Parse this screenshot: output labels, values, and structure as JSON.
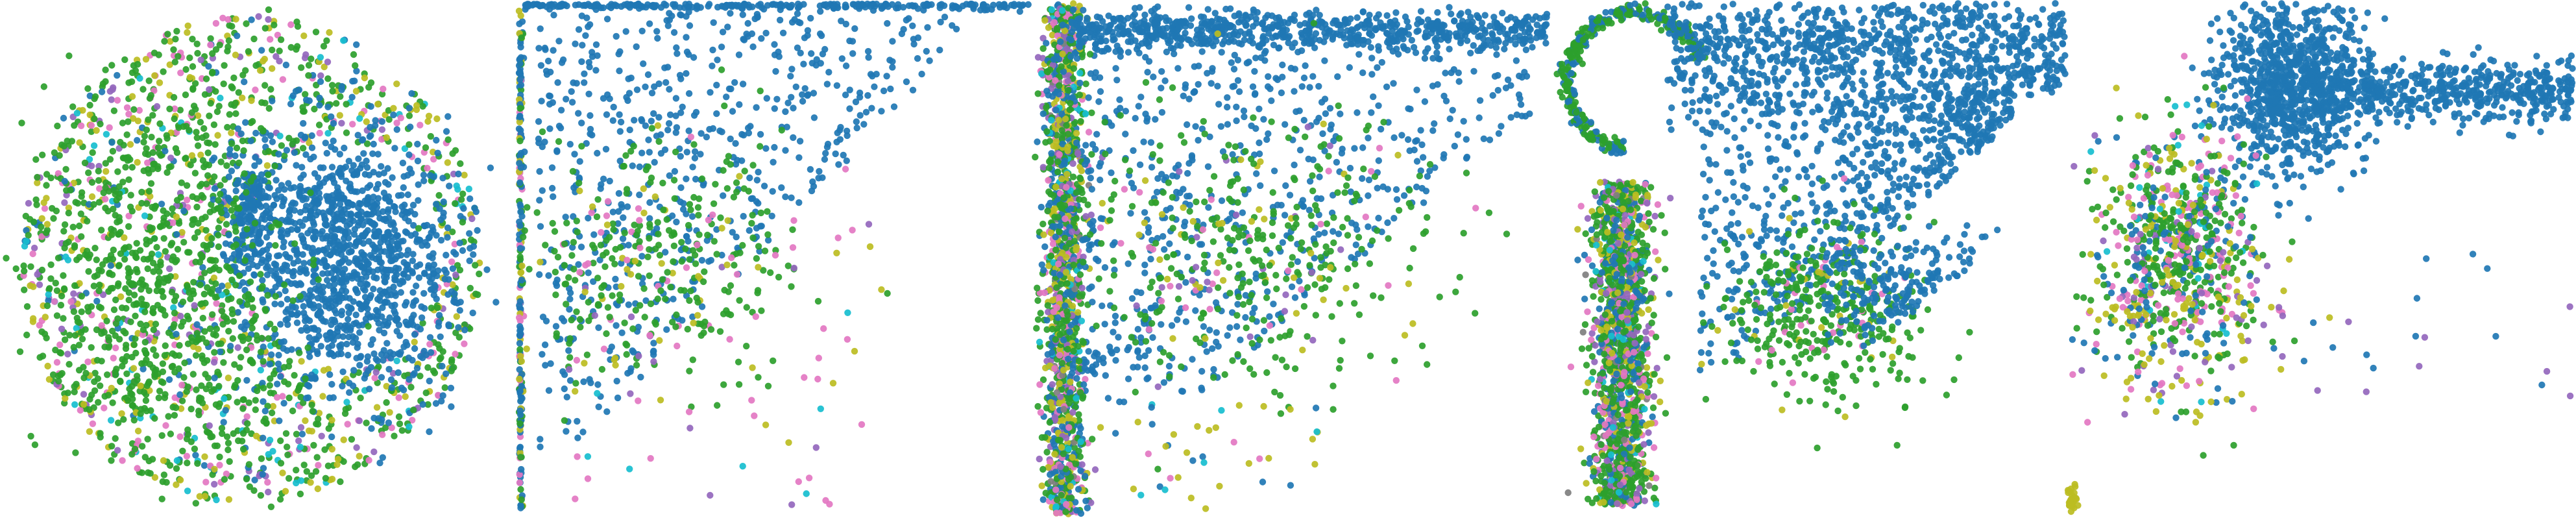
{
  "figure": {
    "background": "#ffffff",
    "panel_count": 5
  },
  "palette": {
    "blue": "#1f77b4",
    "green": "#2ca02c",
    "olive": "#bcbd22",
    "pink": "#e377c2",
    "purple": "#9467bd",
    "cyan": "#17becf",
    "grey": "#7f7f7f"
  },
  "chart_data": [
    {
      "type": "scatter",
      "title": "",
      "xlabel": "",
      "ylabel": "",
      "grid": false,
      "axes_visible": false,
      "shape": "disk with blue cluster on right half, mixed colors on outer ring and left half",
      "series": [
        {
          "color": "blue",
          "points_approx": 2200
        },
        {
          "color": "green",
          "points_approx": 1400
        },
        {
          "color": "olive",
          "points_approx": 250
        },
        {
          "color": "pink",
          "points_approx": 200
        },
        {
          "color": "purple",
          "points_approx": 120
        },
        {
          "color": "cyan",
          "points_approx": 80
        }
      ]
    },
    {
      "type": "scatter",
      "title": "",
      "xlabel": "",
      "ylabel": "",
      "grid": false,
      "axes_visible": false,
      "shape": "points concentrated along left edge and top edge, sparse wedge below",
      "series": [
        {
          "color": "blue",
          "points_approx": 900
        },
        {
          "color": "green",
          "points_approx": 320
        },
        {
          "color": "olive",
          "points_approx": 40
        },
        {
          "color": "pink",
          "points_approx": 30
        },
        {
          "color": "purple",
          "points_approx": 20
        },
        {
          "color": "cyan",
          "points_approx": 15
        }
      ]
    },
    {
      "type": "scatter",
      "title": "",
      "xlabel": "",
      "ylabel": "",
      "grid": false,
      "axes_visible": false,
      "shape": "dense vertical mixed-color band on left, blue horizontal band along top",
      "series": [
        {
          "color": "blue",
          "points_approx": 1800
        },
        {
          "color": "green",
          "points_approx": 900
        },
        {
          "color": "olive",
          "points_approx": 350
        },
        {
          "color": "pink",
          "points_approx": 200
        },
        {
          "color": "purple",
          "points_approx": 160
        },
        {
          "color": "cyan",
          "points_approx": 60
        }
      ]
    },
    {
      "type": "scatter",
      "title": "",
      "xlabel": "",
      "ylabel": "",
      "grid": false,
      "axes_visible": false,
      "shape": "hook at top-left, vertical mixed-color column, blue triangular wedge to the right",
      "series": [
        {
          "color": "blue",
          "points_approx": 2000
        },
        {
          "color": "green",
          "points_approx": 1000
        },
        {
          "color": "olive",
          "points_approx": 250
        },
        {
          "color": "pink",
          "points_approx": 180
        },
        {
          "color": "purple",
          "points_approx": 150
        },
        {
          "color": "cyan",
          "points_approx": 60
        }
      ]
    },
    {
      "type": "scatter",
      "title": "",
      "xlabel": "",
      "ylabel": "",
      "grid": false,
      "axes_visible": false,
      "shape": "dense blue blob top with blue streak extending right, mixed-color cluster below-left",
      "series": [
        {
          "color": "blue",
          "points_approx": 1700
        },
        {
          "color": "green",
          "points_approx": 600
        },
        {
          "color": "olive",
          "points_approx": 200
        },
        {
          "color": "pink",
          "points_approx": 150
        },
        {
          "color": "purple",
          "points_approx": 80
        },
        {
          "color": "cyan",
          "points_approx": 40
        }
      ]
    }
  ]
}
